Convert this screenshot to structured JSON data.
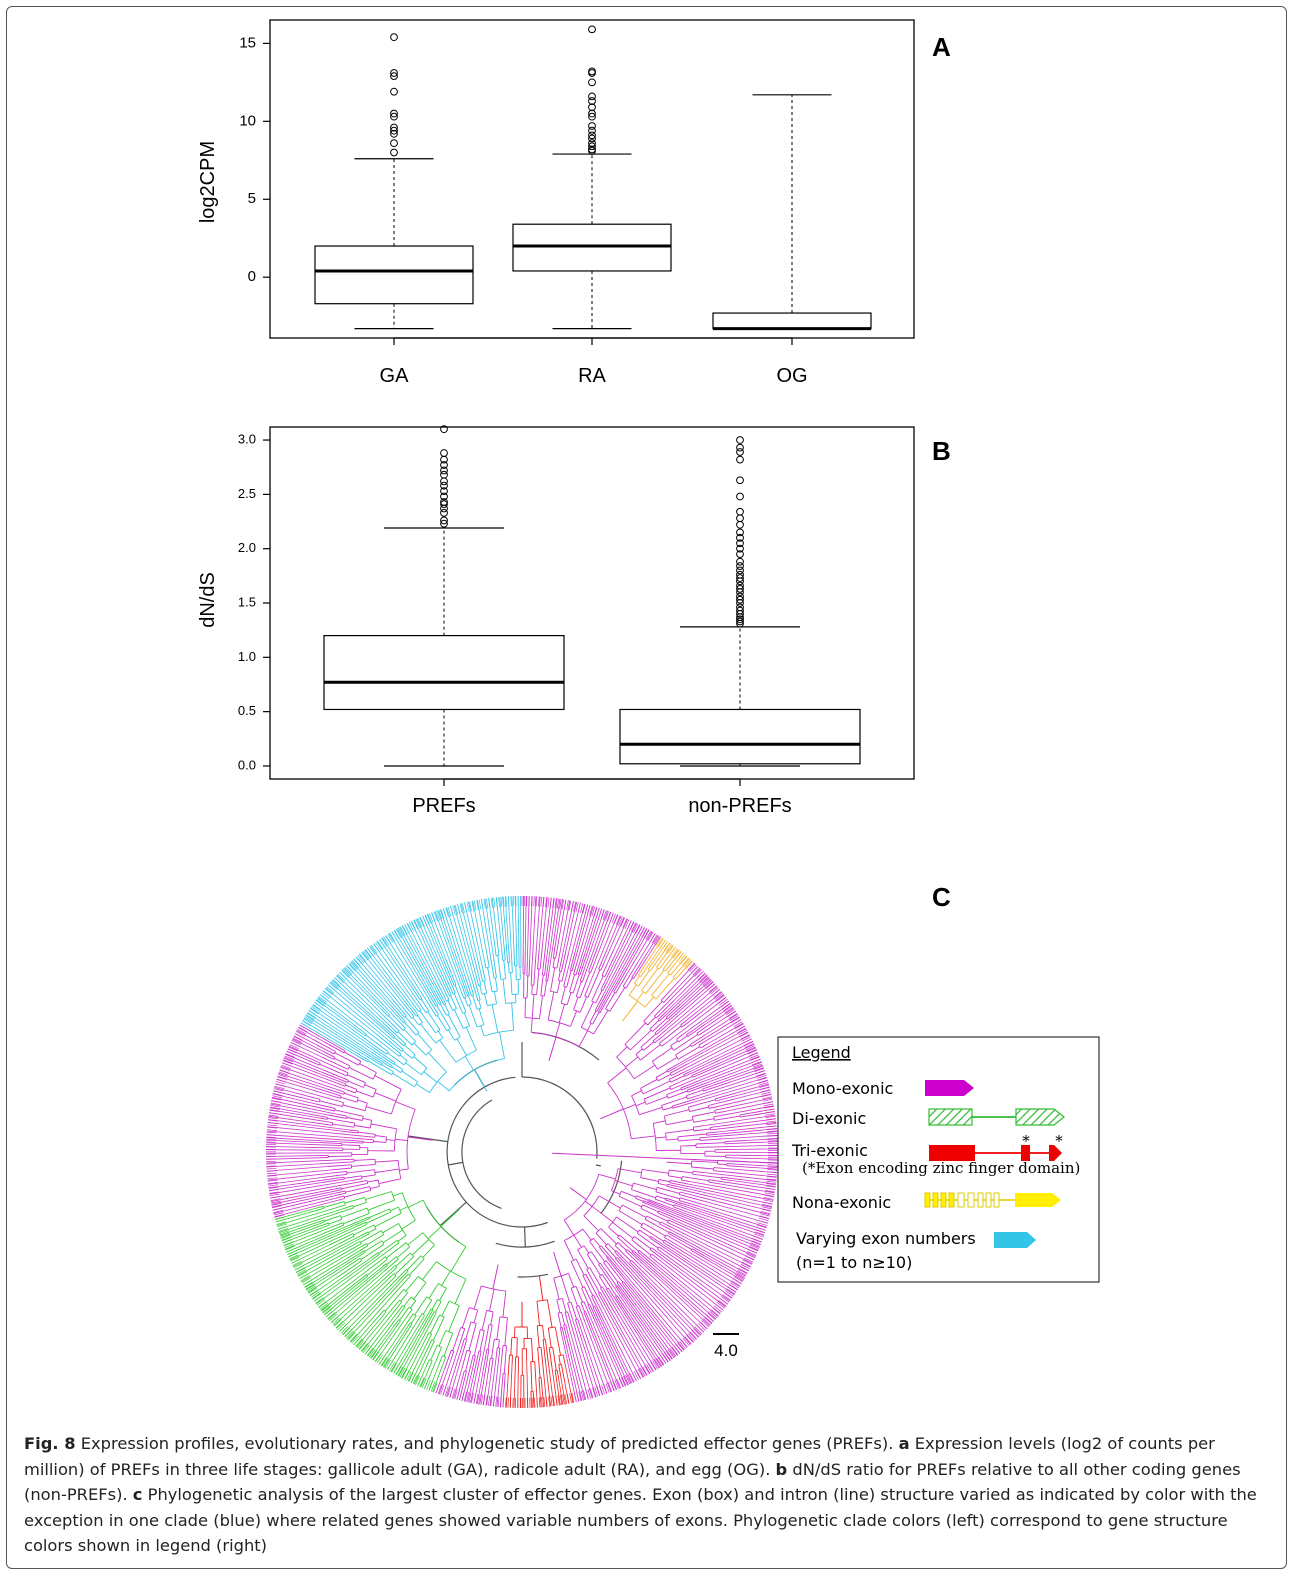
{
  "chart_data": [
    {
      "type": "box",
      "panel_label": "A",
      "ylabel": "log2CPM",
      "xlabel": "",
      "ylim": [
        -3.9,
        16.5
      ],
      "yticks": [
        0,
        5,
        10,
        15
      ],
      "categories": [
        "GA",
        "RA",
        "OG"
      ],
      "boxes": [
        {
          "whisker_low": -3.3,
          "q1": -1.7,
          "median": 0.4,
          "q3": 2.0,
          "whisker_high": 7.6,
          "outliers": [
            8.0,
            8.6,
            9.2,
            9.4,
            9.6,
            10.3,
            10.5,
            11.9,
            12.9,
            13.1,
            15.4
          ]
        },
        {
          "whisker_low": -3.3,
          "q1": 0.4,
          "median": 2.0,
          "q3": 3.4,
          "whisker_high": 7.9,
          "outliers": [
            8.1,
            8.2,
            8.4,
            8.6,
            8.9,
            9.1,
            9.4,
            9.7,
            10.3,
            10.5,
            10.9,
            11.3,
            11.6,
            12.5,
            13.1,
            13.2,
            15.9
          ]
        },
        {
          "whisker_low": -3.3,
          "q1": -3.3,
          "median": -3.3,
          "q3": -2.3,
          "whisker_high": 11.7,
          "outliers": []
        }
      ]
    },
    {
      "type": "box",
      "panel_label": "B",
      "ylabel": "dN/dS",
      "xlabel": "",
      "ylim": [
        -0.12,
        3.12
      ],
      "yticks": [
        "0.0",
        "0.5",
        "1.0",
        "1.5",
        "2.0",
        "2.5",
        "3.0"
      ],
      "categories": [
        "PREFs",
        "non-PREFs"
      ],
      "boxes": [
        {
          "whisker_low": 0.0,
          "q1": 0.52,
          "median": 0.77,
          "q3": 1.2,
          "whisker_high": 2.19,
          "outliers": [
            2.23,
            2.26,
            2.33,
            2.37,
            2.41,
            2.43,
            2.48,
            2.53,
            2.58,
            2.62,
            2.68,
            2.72,
            2.77,
            2.82,
            2.88,
            3.1
          ]
        },
        {
          "whisker_low": 0.0,
          "q1": 0.02,
          "median": 0.2,
          "q3": 0.52,
          "whisker_high": 1.28,
          "outliers": [
            1.31,
            1.33,
            1.35,
            1.37,
            1.4,
            1.43,
            1.46,
            1.5,
            1.53,
            1.56,
            1.6,
            1.63,
            1.66,
            1.7,
            1.73,
            1.76,
            1.8,
            1.84,
            1.88,
            1.95,
            2.0,
            2.05,
            2.1,
            2.15,
            2.22,
            2.28,
            2.34,
            2.48,
            2.63,
            2.82,
            2.89,
            2.93,
            3.0
          ]
        }
      ]
    }
  ],
  "panel_c": {
    "label": "C",
    "scale_bar": "4.0",
    "colors": {
      "magenta": "#cc33cc",
      "cyan": "#33c4e8",
      "green": "#33cc33",
      "red": "#ee2222",
      "orange": "#f2b230",
      "gray": "#555555",
      "yellow": "#ffee00"
    },
    "legend": {
      "title": "Legend",
      "items": [
        {
          "label": "Mono-exonic",
          "icon": "mono-exonic-gene-icon"
        },
        {
          "label": "Di-exonic",
          "icon": "di-exonic-gene-icon"
        },
        {
          "label": "Tri-exonic",
          "icon": "tri-exonic-gene-icon",
          "note": "(*Exon encoding zinc finger domain)",
          "star": "*"
        },
        {
          "label": "Nona-exonic",
          "icon": "nona-exonic-gene-icon"
        },
        {
          "label": "Varying exon numbers",
          "icon": "varying-exon-gene-icon",
          "note": "(n=1 to n≥10)"
        }
      ]
    }
  },
  "caption": {
    "fig": "Fig. 8",
    "title": " Expression profiles, evolutionary rates, and phylogenetic study of predicted effector genes (PREFs). ",
    "a": "a",
    "a_text": " Expression levels (log2 of counts per million) of PREFs in three life stages: gallicole adult (GA), radicole adult (RA), and egg (OG). ",
    "b": "b",
    "b_text": " dN/dS ratio for PREFs relative to all other coding genes (non-PREFs). ",
    "c": "c",
    "c_text": " Phylogenetic analysis of the largest cluster of effector genes. Exon (box) and intron (line) structure varied as indicated by color with the exception in one clade (blue) where related genes showed variable numbers of exons. Phylogenetic clade colors (left) correspond to gene structure colors shown in legend (right)"
  }
}
